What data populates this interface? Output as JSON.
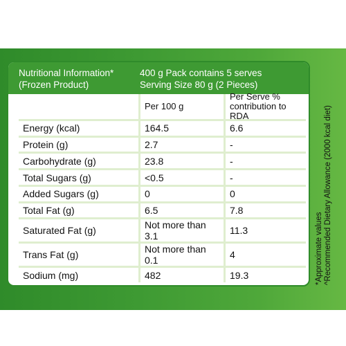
{
  "header": {
    "left_line1": "Nutritional Information*",
    "left_line2": "(Frozen Product)",
    "right_line1": "400 g Pack contains 5 serves",
    "right_line2": "Serving Size  80 g (2 Pieces)"
  },
  "columns": {
    "per100": "Per 100 g",
    "perserve": "Per Serve % contribution to RDA"
  },
  "rows": [
    {
      "nutrient": "Energy (kcal)",
      "per100": "164.5",
      "perserve": "6.6"
    },
    {
      "nutrient": "Protein (g)",
      "per100": "2.7",
      "perserve": "-"
    },
    {
      "nutrient": "Carbohydrate (g)",
      "per100": "23.8",
      "perserve": "-"
    },
    {
      "nutrient": "Total Sugars (g)",
      "per100": "<0.5",
      "perserve": "-"
    },
    {
      "nutrient": "Added Sugars (g)",
      "per100": "0",
      "perserve": "0"
    },
    {
      "nutrient": "Total Fat (g)",
      "per100": "6.5",
      "perserve": "7.8"
    },
    {
      "nutrient": "Saturated Fat (g)",
      "per100": "Not more than 3.1",
      "perserve": "11.3"
    },
    {
      "nutrient": "Trans Fat (g)",
      "per100": "Not more than 0.1",
      "perserve": "4"
    },
    {
      "nutrient": "Sodium (mg)",
      "per100": "482",
      "perserve": "19.3"
    }
  ],
  "notes": {
    "line1": "*Approximate values",
    "line2": "^Recommended Dietary Allowance (2000 kcal diet)"
  }
}
